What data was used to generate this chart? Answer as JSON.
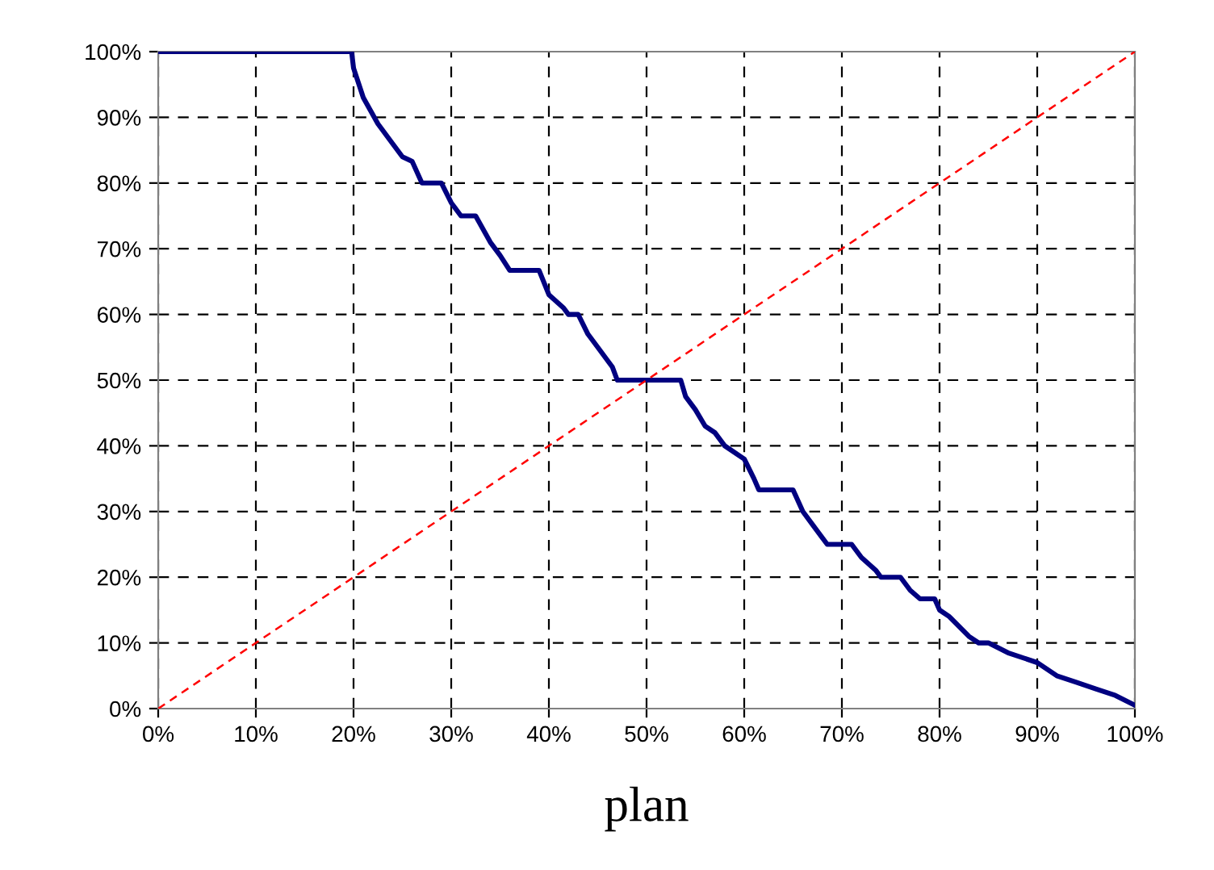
{
  "chart_data": {
    "type": "line",
    "xlabel": "plan",
    "xlim": [
      0,
      100
    ],
    "ylim": [
      0,
      100
    ],
    "xticks": [
      {
        "value": 0,
        "label": "0%"
      },
      {
        "value": 10,
        "label": "10%"
      },
      {
        "value": 20,
        "label": "20%"
      },
      {
        "value": 30,
        "label": "30%"
      },
      {
        "value": 40,
        "label": "40%"
      },
      {
        "value": 50,
        "label": "50%"
      },
      {
        "value": 60,
        "label": "60%"
      },
      {
        "value": 70,
        "label": "70%"
      },
      {
        "value": 80,
        "label": "80%"
      },
      {
        "value": 90,
        "label": "90%"
      },
      {
        "value": 100,
        "label": "100%"
      }
    ],
    "yticks": [
      {
        "value": 0,
        "label": "0%"
      },
      {
        "value": 10,
        "label": "10%"
      },
      {
        "value": 20,
        "label": "20%"
      },
      {
        "value": 30,
        "label": "30%"
      },
      {
        "value": 40,
        "label": "40%"
      },
      {
        "value": 50,
        "label": "50%"
      },
      {
        "value": 60,
        "label": "60%"
      },
      {
        "value": 70,
        "label": "70%"
      },
      {
        "value": 80,
        "label": "80%"
      },
      {
        "value": 90,
        "label": "90%"
      },
      {
        "value": 100,
        "label": "100%"
      }
    ],
    "grid": true,
    "marker": "none",
    "series": [
      {
        "color": "#000080",
        "line_style": "solid",
        "x": [
          0,
          19.8,
          20,
          21,
          22.5,
          24,
          25,
          26,
          27,
          29,
          30,
          31,
          32.5,
          34,
          35,
          36,
          39,
          40,
          41.5,
          42,
          43,
          44,
          45,
          46.5,
          47,
          53.5,
          54,
          55,
          56,
          57,
          58,
          60,
          61,
          61.5,
          65,
          66,
          67,
          68.5,
          71,
          72,
          73.5,
          74,
          76,
          77,
          78,
          79.5,
          80,
          81,
          83,
          84,
          85,
          87,
          90,
          92,
          94,
          96,
          98,
          100
        ],
        "values": [
          100,
          100,
          97.5,
          93,
          89,
          86,
          84,
          83.3,
          80,
          80,
          77,
          75,
          75,
          71,
          69,
          66.7,
          66.7,
          63,
          61,
          60,
          60,
          57,
          55,
          52,
          50,
          50,
          47.5,
          45.5,
          43,
          42,
          40,
          38,
          35,
          33.3,
          33.3,
          30,
          28,
          25,
          25,
          23,
          21,
          20,
          20,
          18,
          16.7,
          16.7,
          15,
          14,
          11,
          10,
          10,
          8.5,
          7,
          5,
          4,
          3,
          2,
          0.5
        ]
      },
      {
        "color": "#ff0000",
        "line_style": "dashed",
        "x": [
          0,
          100
        ],
        "values": [
          0,
          100
        ]
      }
    ]
  }
}
